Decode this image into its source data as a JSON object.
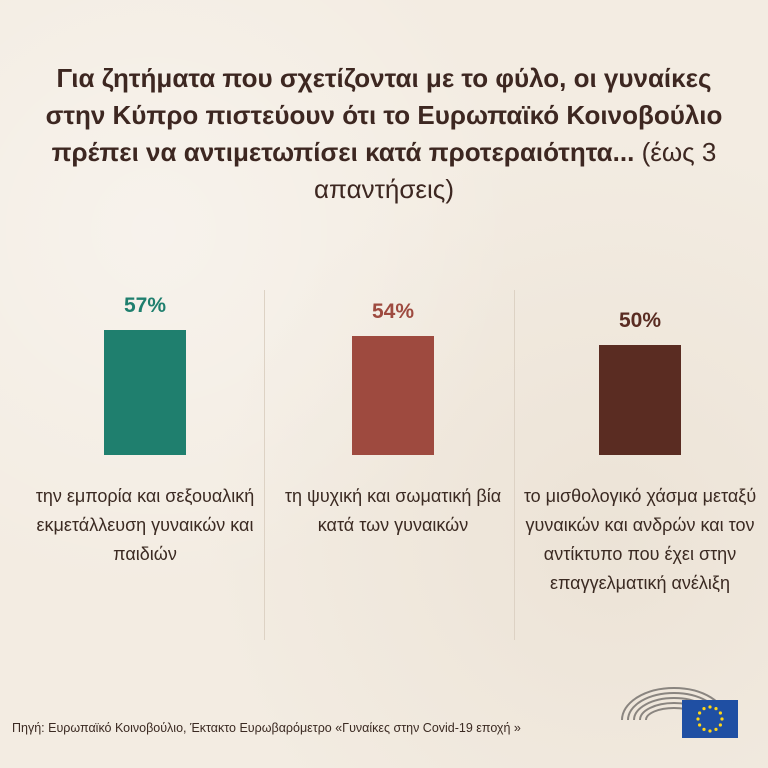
{
  "title": {
    "bold": "Για ζητήματα που σχετίζονται με το φύλο, οι γυναίκες στην Κύπρο πιστεύουν ότι το Ευρωπαϊκό Κοινοβούλιο πρέπει να αντιμετωπίσει κατά προτεραιότητα...",
    "note": "(έως 3 απαντήσεις)"
  },
  "chart_data": {
    "type": "bar",
    "categories": [
      "την εμπορία και σεξουαλική εκμετάλλευση γυναικών και παιδιών",
      "τη ψυχική και σωματική βία κατά των γυναικών",
      "το μισθολογικό χάσμα μεταξύ γυναικών και ανδρών και τον αντίκτυπο που έχει στην επαγγελματική ανέλιξη"
    ],
    "values": [
      57,
      54,
      50
    ],
    "labels": [
      "57%",
      "54%",
      "50%"
    ],
    "colors": [
      "#1f7f6e",
      "#9e4a3f",
      "#5a2c22"
    ],
    "ylim": [
      0,
      100
    ]
  },
  "source": "Πηγή: Ευρωπαϊκό Κοινοβούλιο, Έκτακτο Ευρωβαρόμετρο «Γυναίκες στην Covid-19 εποχή »"
}
